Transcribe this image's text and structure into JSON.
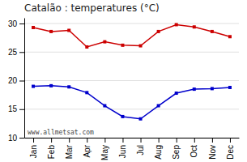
{
  "chart_data": {
    "type": "line",
    "title": "Catalão : temperatures (°C)",
    "categories": [
      "Jan",
      "Feb",
      "Mar",
      "Apr",
      "May",
      "Jun",
      "Jul",
      "Aug",
      "Sep",
      "Oct",
      "Nov",
      "Dec"
    ],
    "series": [
      {
        "color": "#cc0000",
        "marker": "square",
        "line_style": "solid",
        "values": [
          29.3,
          28.6,
          28.8,
          25.9,
          26.8,
          26.2,
          26.1,
          28.6,
          29.8,
          29.4,
          28.6,
          27.7
        ]
      },
      {
        "color": "#0000cc",
        "marker": "square",
        "line_style": "solid",
        "values": [
          19.0,
          19.1,
          18.9,
          17.9,
          15.6,
          13.7,
          13.3,
          15.6,
          17.8,
          18.5,
          18.6,
          18.8
        ]
      }
    ],
    "ylim": [
      10,
      31
    ],
    "yticks": [
      10,
      15,
      20,
      25,
      30
    ],
    "grid": true,
    "annotation": "www.allmetsat.com"
  }
}
